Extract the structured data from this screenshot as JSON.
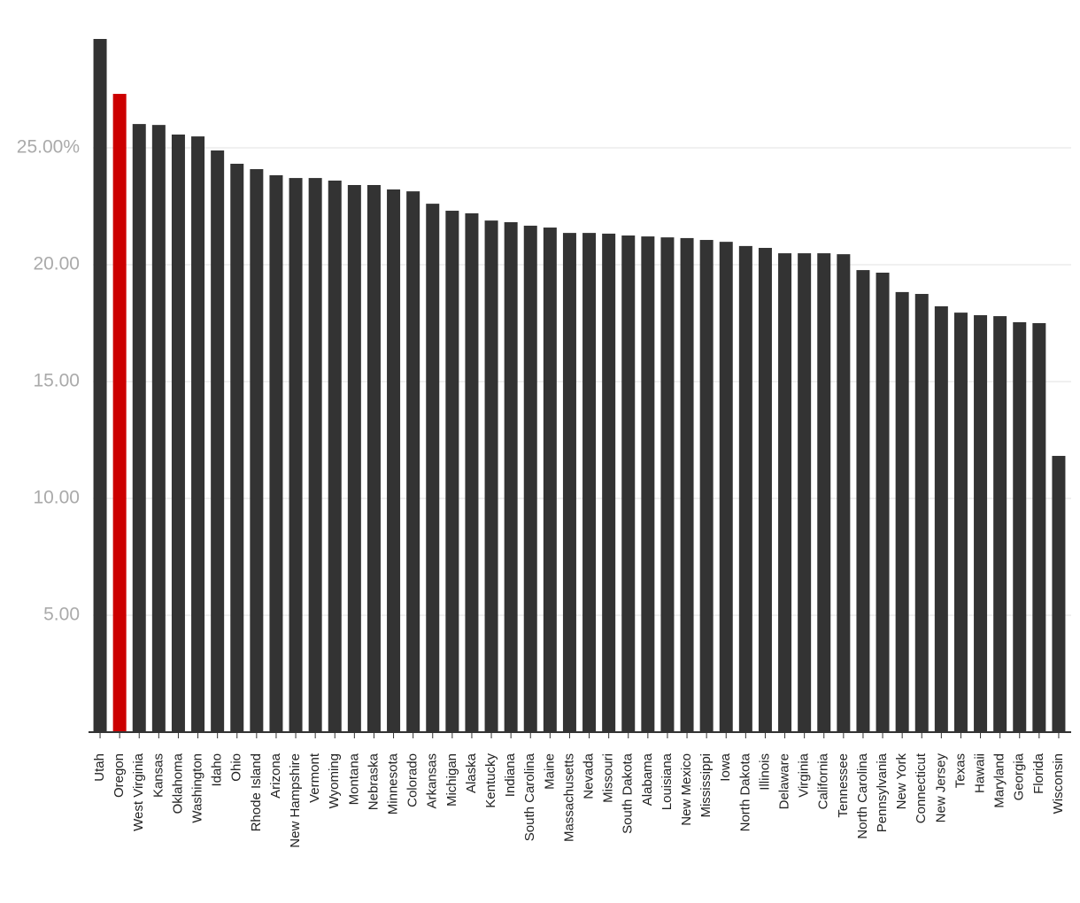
{
  "chart_data": {
    "type": "bar",
    "categories": [
      "Utah",
      "Oregon",
      "West Virginia",
      "Kansas",
      "Oklahoma",
      "Washington",
      "Idaho",
      "Ohio",
      "Rhode Island",
      "Arizona",
      "New Hampshire",
      "Vermont",
      "Wyoming",
      "Montana",
      "Nebraska",
      "Minnesota",
      "Colorado",
      "Arkansas",
      "Michigan",
      "Alaska",
      "Kentucky",
      "Indiana",
      "South Carolina",
      "Maine",
      "Massachusetts",
      "Nevada",
      "Missouri",
      "South Dakota",
      "Alabama",
      "Louisiana",
      "New Mexico",
      "Mississippi",
      "Iowa",
      "North Dakota",
      "Illinois",
      "Delaware",
      "Virginia",
      "California",
      "Tennessee",
      "North Carolina",
      "Pennsylvania",
      "New York",
      "Connecticut",
      "New Jersey",
      "Texas",
      "Hawaii",
      "Maryland",
      "Georgia",
      "Florida",
      "Wisconsin"
    ],
    "values": [
      29.66,
      27.31,
      26.02,
      25.98,
      25.57,
      25.49,
      24.89,
      24.32,
      24.09,
      23.83,
      23.71,
      23.71,
      23.6,
      23.41,
      23.41,
      23.22,
      23.14,
      22.61,
      22.31,
      22.2,
      21.89,
      21.82,
      21.67,
      21.59,
      21.36,
      21.36,
      21.33,
      21.25,
      21.21,
      21.17,
      21.14,
      21.06,
      20.98,
      20.8,
      20.72,
      20.49,
      20.49,
      20.49,
      20.45,
      19.77,
      19.66,
      18.83,
      18.75,
      18.22,
      17.95,
      17.84,
      17.8,
      17.54,
      17.5,
      11.82
    ],
    "colors": [
      "#333333",
      "#cc0000",
      "#333333",
      "#333333",
      "#333333",
      "#333333",
      "#333333",
      "#333333",
      "#333333",
      "#333333",
      "#333333",
      "#333333",
      "#333333",
      "#333333",
      "#333333",
      "#333333",
      "#333333",
      "#333333",
      "#333333",
      "#333333",
      "#333333",
      "#333333",
      "#333333",
      "#333333",
      "#333333",
      "#333333",
      "#333333",
      "#333333",
      "#333333",
      "#333333",
      "#333333",
      "#333333",
      "#333333",
      "#333333",
      "#333333",
      "#333333",
      "#333333",
      "#333333",
      "#333333",
      "#333333",
      "#333333",
      "#333333",
      "#333333",
      "#333333",
      "#333333",
      "#333333",
      "#333333",
      "#333333",
      "#333333",
      "#333333"
    ],
    "ylim": [
      0,
      29.66
    ],
    "yticks": [
      {
        "value": 5,
        "label": "5.00"
      },
      {
        "value": 10,
        "label": "10.00"
      },
      {
        "value": 15,
        "label": "15.00"
      },
      {
        "value": 20,
        "label": "20.00"
      },
      {
        "value": 25,
        "label": "25.00%"
      }
    ],
    "grid": true
  }
}
